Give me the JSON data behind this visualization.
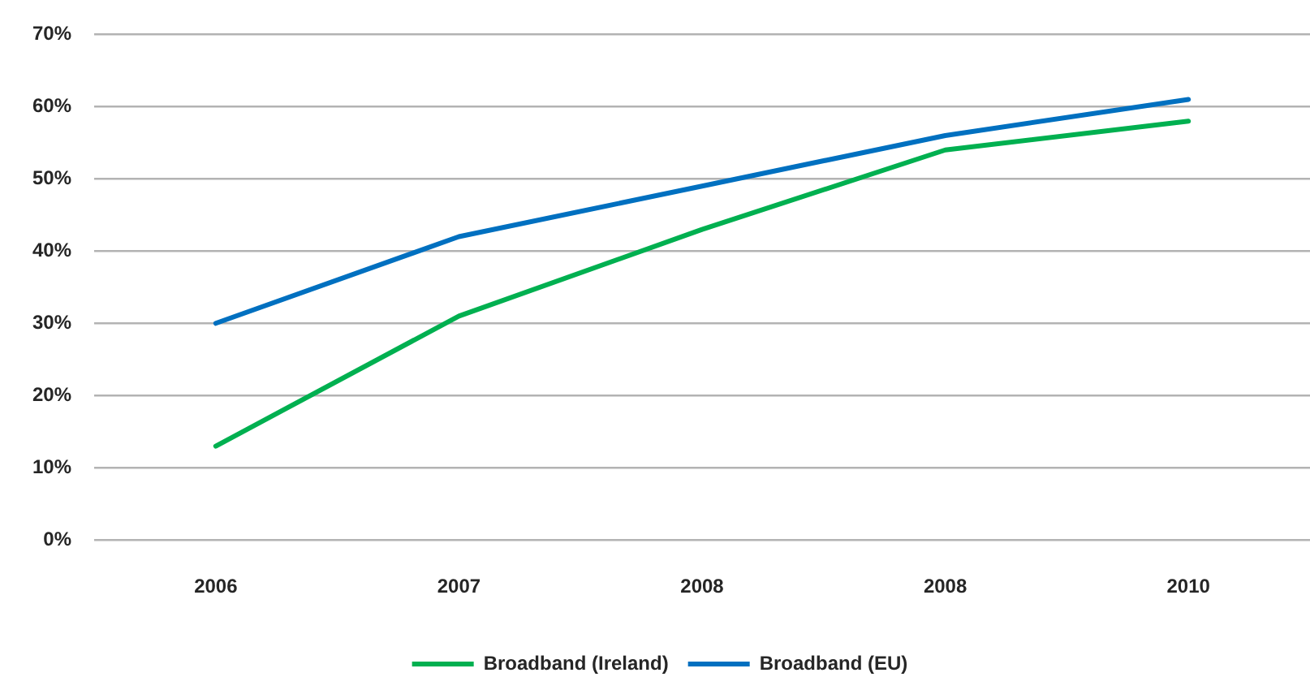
{
  "chart_data": {
    "type": "line",
    "categories": [
      "2006",
      "2007",
      "2008",
      "2008",
      "2010"
    ],
    "series": [
      {
        "name": "Broadband (Ireland)",
        "color": "#00b050",
        "values": [
          13,
          31,
          43,
          54,
          58
        ]
      },
      {
        "name": "Broadband (EU)",
        "color": "#0070c0",
        "values": [
          30,
          42,
          49,
          56,
          61
        ]
      }
    ],
    "ylim": [
      0,
      70
    ],
    "yticks": [
      {
        "value": 0,
        "label": "0%"
      },
      {
        "value": 10,
        "label": "10%"
      },
      {
        "value": 20,
        "label": "20%"
      },
      {
        "value": 30,
        "label": "30%"
      },
      {
        "value": 40,
        "label": "40%"
      },
      {
        "value": 50,
        "label": "50%"
      },
      {
        "value": 60,
        "label": "60%"
      },
      {
        "value": 70,
        "label": "70%"
      }
    ],
    "grid": "y",
    "legend": "bottom",
    "marker": "none",
    "line_style": "solid"
  }
}
